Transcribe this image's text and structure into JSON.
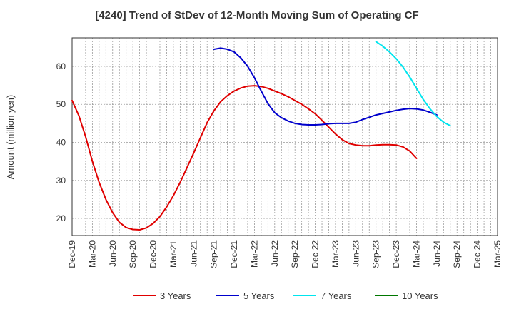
{
  "chart_data": {
    "type": "line",
    "title": "[4240]  Trend of StDev of 12-Month Moving Sum of Operating CF",
    "xlabel": "",
    "ylabel": "Amount (million yen)",
    "ylim": [
      15.5,
      67.5
    ],
    "yticks": [
      20,
      30,
      40,
      50,
      60
    ],
    "x_categories": [
      "Dec-19",
      "Mar-20",
      "Jun-20",
      "Sep-20",
      "Dec-20",
      "Mar-21",
      "Jun-21",
      "Sep-21",
      "Dec-21",
      "Mar-22",
      "Jun-22",
      "Sep-22",
      "Dec-22",
      "Mar-23",
      "Jun-23",
      "Sep-23",
      "Dec-23",
      "Mar-24",
      "Jun-24",
      "Sep-24",
      "Dec-24",
      "Mar-25"
    ],
    "grid": true,
    "legend_position": "bottom",
    "series": [
      {
        "name": "3 Years",
        "color": "#e00000",
        "start_index": 0,
        "values": [
          51.0,
          47.0,
          41.5,
          35.0,
          29.5,
          25.0,
          21.5,
          19.0,
          17.6,
          17.1,
          17.0,
          17.5,
          18.7,
          20.5,
          23.0,
          26.0,
          29.5,
          33.3,
          37.2,
          41.2,
          45.2,
          48.3,
          50.7,
          52.3,
          53.5,
          54.3,
          54.8,
          54.9,
          54.7,
          54.2,
          53.5,
          52.8,
          52.0,
          51.0,
          50.0,
          48.8,
          47.5,
          45.8,
          44.0,
          42.2,
          40.7,
          39.7,
          39.3,
          39.1,
          39.1,
          39.3,
          39.4,
          39.4,
          39.3,
          38.8,
          37.7,
          35.8
        ]
      },
      {
        "name": "5 Years",
        "color": "#0000cc",
        "start_index": 21,
        "values": [
          64.5,
          64.8,
          64.5,
          63.8,
          62.2,
          60.0,
          57.0,
          53.5,
          50.2,
          47.8,
          46.5,
          45.6,
          45.0,
          44.7,
          44.6,
          44.6,
          44.7,
          44.9,
          45.0,
          45.0,
          45.0,
          45.3,
          46.0,
          46.6,
          47.2,
          47.6,
          48.0,
          48.4,
          48.7,
          48.9,
          48.8,
          48.5,
          47.9,
          47.2
        ]
      },
      {
        "name": "7 Years",
        "color": "#00e5ee",
        "start_index": 45,
        "values": [
          66.5,
          65.3,
          63.8,
          62.0,
          59.8,
          57.2,
          54.2,
          51.3,
          48.8,
          46.8,
          45.3,
          44.4
        ]
      },
      {
        "name": "10 Years",
        "color": "#007700",
        "start_index": 0,
        "values": []
      }
    ]
  }
}
